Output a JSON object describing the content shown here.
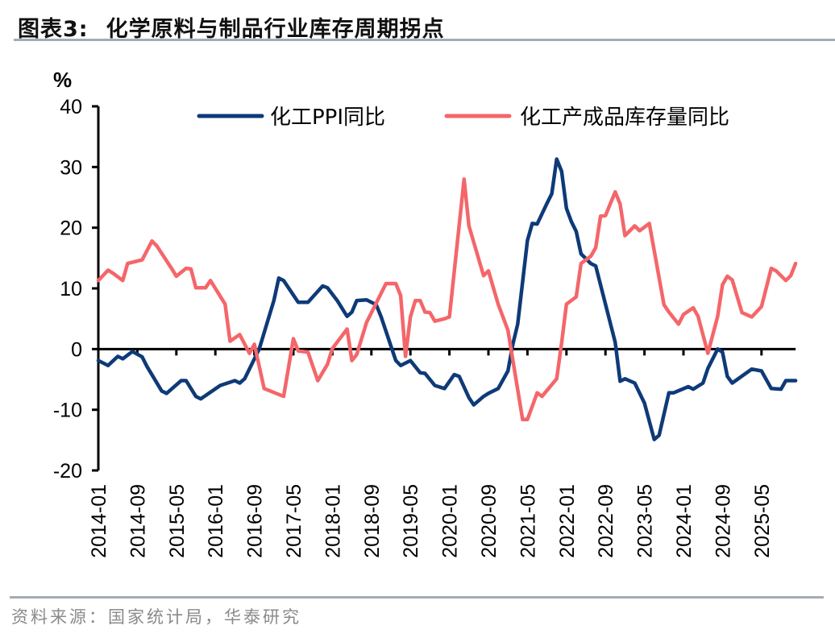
{
  "header": {
    "figure_number": "图表3:",
    "title": "化学原料与制品行业库存周期拐点"
  },
  "footer": {
    "source": "资料来源：国家统计局，华泰研究"
  },
  "chart_data": {
    "type": "line",
    "title": "化学原料与制品行业库存周期拐点",
    "ylabel": "%",
    "xlabel": "",
    "ylim": [
      -20,
      40
    ],
    "yticks": [
      40,
      30,
      20,
      10,
      0,
      -10,
      -20
    ],
    "xrange": [
      "2014-01",
      "2025-12"
    ],
    "xticks": [
      "2014-01",
      "2014-09",
      "2015-05",
      "2016-01",
      "2016-09",
      "2017-05",
      "2018-01",
      "2018-09",
      "2019-05",
      "2020-01",
      "2020-09",
      "2021-05",
      "2022-01",
      "2022-09",
      "2023-05",
      "2024-01",
      "2024-09",
      "2025-05"
    ],
    "grid": false,
    "legend_position": "top",
    "series": [
      {
        "name": "化工PPI同比",
        "color": "#0e3a78",
        "points": [
          [
            "2014-01",
            -1.9
          ],
          [
            "2014-03",
            -2.7
          ],
          [
            "2014-05",
            -1.2
          ],
          [
            "2014-06",
            -1.6
          ],
          [
            "2014-08",
            -0.4
          ],
          [
            "2014-10",
            -1.3
          ],
          [
            "2014-11",
            -2.9
          ],
          [
            "2015-02",
            -6.9
          ],
          [
            "2015-03",
            -7.3
          ],
          [
            "2015-06",
            -5.2
          ],
          [
            "2015-07",
            -5.2
          ],
          [
            "2015-09",
            -7.8
          ],
          [
            "2015-10",
            -8.2
          ],
          [
            "2016-02",
            -6.0
          ],
          [
            "2016-05",
            -5.2
          ],
          [
            "2016-06",
            -5.6
          ],
          [
            "2016-07",
            -4.9
          ],
          [
            "2016-10",
            0.0
          ],
          [
            "2017-01",
            8.0
          ],
          [
            "2017-02",
            11.7
          ],
          [
            "2017-03",
            11.3
          ],
          [
            "2017-06",
            7.7
          ],
          [
            "2017-08",
            7.7
          ],
          [
            "2017-11",
            10.4
          ],
          [
            "2017-12",
            10.1
          ],
          [
            "2018-02",
            8.0
          ],
          [
            "2018-04",
            5.4
          ],
          [
            "2018-05",
            6.1
          ],
          [
            "2018-06",
            8.0
          ],
          [
            "2018-08",
            8.1
          ],
          [
            "2018-10",
            7.3
          ],
          [
            "2018-11",
            5.3
          ],
          [
            "2019-02",
            -1.9
          ],
          [
            "2019-03",
            -2.7
          ],
          [
            "2019-05",
            -1.9
          ],
          [
            "2019-07",
            -3.9
          ],
          [
            "2019-08",
            -4.0
          ],
          [
            "2019-10",
            -6.0
          ],
          [
            "2019-12",
            -6.5
          ],
          [
            "2020-02",
            -4.2
          ],
          [
            "2020-03",
            -4.5
          ],
          [
            "2020-05",
            -8.0
          ],
          [
            "2020-06",
            -9.2
          ],
          [
            "2020-08",
            -7.8
          ],
          [
            "2020-09",
            -7.3
          ],
          [
            "2020-11",
            -6.5
          ],
          [
            "2021-01",
            -3.6
          ],
          [
            "2021-02",
            0.8
          ],
          [
            "2021-03",
            4.1
          ],
          [
            "2021-05",
            17.9
          ],
          [
            "2021-06",
            20.7
          ],
          [
            "2021-07",
            20.6
          ],
          [
            "2021-09",
            24.0
          ],
          [
            "2021-10",
            25.6
          ],
          [
            "2021-11",
            31.3
          ],
          [
            "2021-12",
            29.3
          ],
          [
            "2022-01",
            23.2
          ],
          [
            "2022-02",
            21.0
          ],
          [
            "2022-03",
            19.4
          ],
          [
            "2022-04",
            15.7
          ],
          [
            "2022-06",
            14.1
          ],
          [
            "2022-07",
            13.7
          ],
          [
            "2022-11",
            1.1
          ],
          [
            "2022-12",
            -5.3
          ],
          [
            "2023-01",
            -4.9
          ],
          [
            "2023-03",
            -5.6
          ],
          [
            "2023-05",
            -8.9
          ],
          [
            "2023-07",
            -14.9
          ],
          [
            "2023-08",
            -14.2
          ],
          [
            "2023-10",
            -7.2
          ],
          [
            "2023-11",
            -7.2
          ],
          [
            "2024-02",
            -6.2
          ],
          [
            "2024-03",
            -6.6
          ],
          [
            "2024-05",
            -5.6
          ],
          [
            "2024-06",
            -3.2
          ],
          [
            "2024-08",
            0.0
          ],
          [
            "2024-09",
            -0.5
          ],
          [
            "2024-10",
            -4.5
          ],
          [
            "2024-11",
            -5.6
          ],
          [
            "2025-03",
            -3.3
          ],
          [
            "2025-05",
            -3.6
          ],
          [
            "2025-07",
            -6.5
          ],
          [
            "2025-09",
            -6.6
          ],
          [
            "2025-10",
            -5.2
          ],
          [
            "2025-12",
            -5.2
          ]
        ]
      },
      {
        "name": "化工产成品库存量同比",
        "color": "#f4666a",
        "points": [
          [
            "2014-01",
            11.3
          ],
          [
            "2014-03",
            13.0
          ],
          [
            "2014-04",
            12.5
          ],
          [
            "2014-06",
            11.3
          ],
          [
            "2014-07",
            14.1
          ],
          [
            "2014-10",
            14.7
          ],
          [
            "2014-12",
            17.8
          ],
          [
            "2015-01",
            17.0
          ],
          [
            "2015-04",
            13.3
          ],
          [
            "2015-05",
            12.0
          ],
          [
            "2015-07",
            13.3
          ],
          [
            "2015-08",
            13.2
          ],
          [
            "2015-09",
            10.1
          ],
          [
            "2015-11",
            10.1
          ],
          [
            "2015-12",
            11.3
          ],
          [
            "2016-03",
            7.4
          ],
          [
            "2016-04",
            1.3
          ],
          [
            "2016-06",
            2.4
          ],
          [
            "2016-08",
            -0.7
          ],
          [
            "2016-09",
            0.8
          ],
          [
            "2016-11",
            -6.5
          ],
          [
            "2017-03",
            -7.8
          ],
          [
            "2017-05",
            1.7
          ],
          [
            "2017-06",
            -0.3
          ],
          [
            "2017-08",
            -0.5
          ],
          [
            "2017-10",
            -5.2
          ],
          [
            "2017-12",
            -2.5
          ],
          [
            "2018-01",
            0.1
          ],
          [
            "2018-04",
            3.3
          ],
          [
            "2018-05",
            -1.9
          ],
          [
            "2018-06",
            -0.9
          ],
          [
            "2018-08",
            4.4
          ],
          [
            "2018-12",
            10.8
          ],
          [
            "2019-02",
            10.8
          ],
          [
            "2019-03",
            8.8
          ],
          [
            "2019-04",
            -1.2
          ],
          [
            "2019-05",
            5.3
          ],
          [
            "2019-06",
            8.0
          ],
          [
            "2019-07",
            8.0
          ],
          [
            "2019-08",
            6.1
          ],
          [
            "2019-09",
            6.0
          ],
          [
            "2019-10",
            4.6
          ],
          [
            "2019-12",
            5.0
          ],
          [
            "2020-01",
            5.3
          ],
          [
            "2020-04",
            28.0
          ],
          [
            "2020-05",
            20.3
          ],
          [
            "2020-08",
            12.1
          ],
          [
            "2020-09",
            12.9
          ],
          [
            "2020-11",
            7.4
          ],
          [
            "2021-01",
            3.1
          ],
          [
            "2021-04",
            -11.6
          ],
          [
            "2021-05",
            -11.6
          ],
          [
            "2021-07",
            -7.2
          ],
          [
            "2021-08",
            -7.8
          ],
          [
            "2021-11",
            -4.9
          ],
          [
            "2021-12",
            1.0
          ],
          [
            "2022-01",
            7.4
          ],
          [
            "2022-03",
            8.6
          ],
          [
            "2022-04",
            14.1
          ],
          [
            "2022-06",
            15.3
          ],
          [
            "2022-07",
            16.7
          ],
          [
            "2022-08",
            21.9
          ],
          [
            "2022-09",
            22.0
          ],
          [
            "2022-11",
            25.9
          ],
          [
            "2022-12",
            23.9
          ],
          [
            "2023-01",
            18.7
          ],
          [
            "2023-03",
            20.3
          ],
          [
            "2023-04",
            19.5
          ],
          [
            "2023-06",
            20.7
          ],
          [
            "2023-09",
            7.3
          ],
          [
            "2023-10",
            6.1
          ],
          [
            "2023-12",
            4.1
          ],
          [
            "2024-01",
            5.7
          ],
          [
            "2024-03",
            6.8
          ],
          [
            "2024-04",
            5.4
          ],
          [
            "2024-06",
            -0.7
          ],
          [
            "2024-08",
            5.4
          ],
          [
            "2024-09",
            10.6
          ],
          [
            "2024-10",
            12.0
          ],
          [
            "2024-11",
            11.4
          ],
          [
            "2025-01",
            6.0
          ],
          [
            "2025-03",
            5.3
          ],
          [
            "2025-05",
            7.0
          ],
          [
            "2025-07",
            13.3
          ],
          [
            "2025-08",
            12.9
          ],
          [
            "2025-10",
            11.3
          ],
          [
            "2025-11",
            12.1
          ],
          [
            "2025-12",
            14.1
          ]
        ]
      }
    ]
  }
}
